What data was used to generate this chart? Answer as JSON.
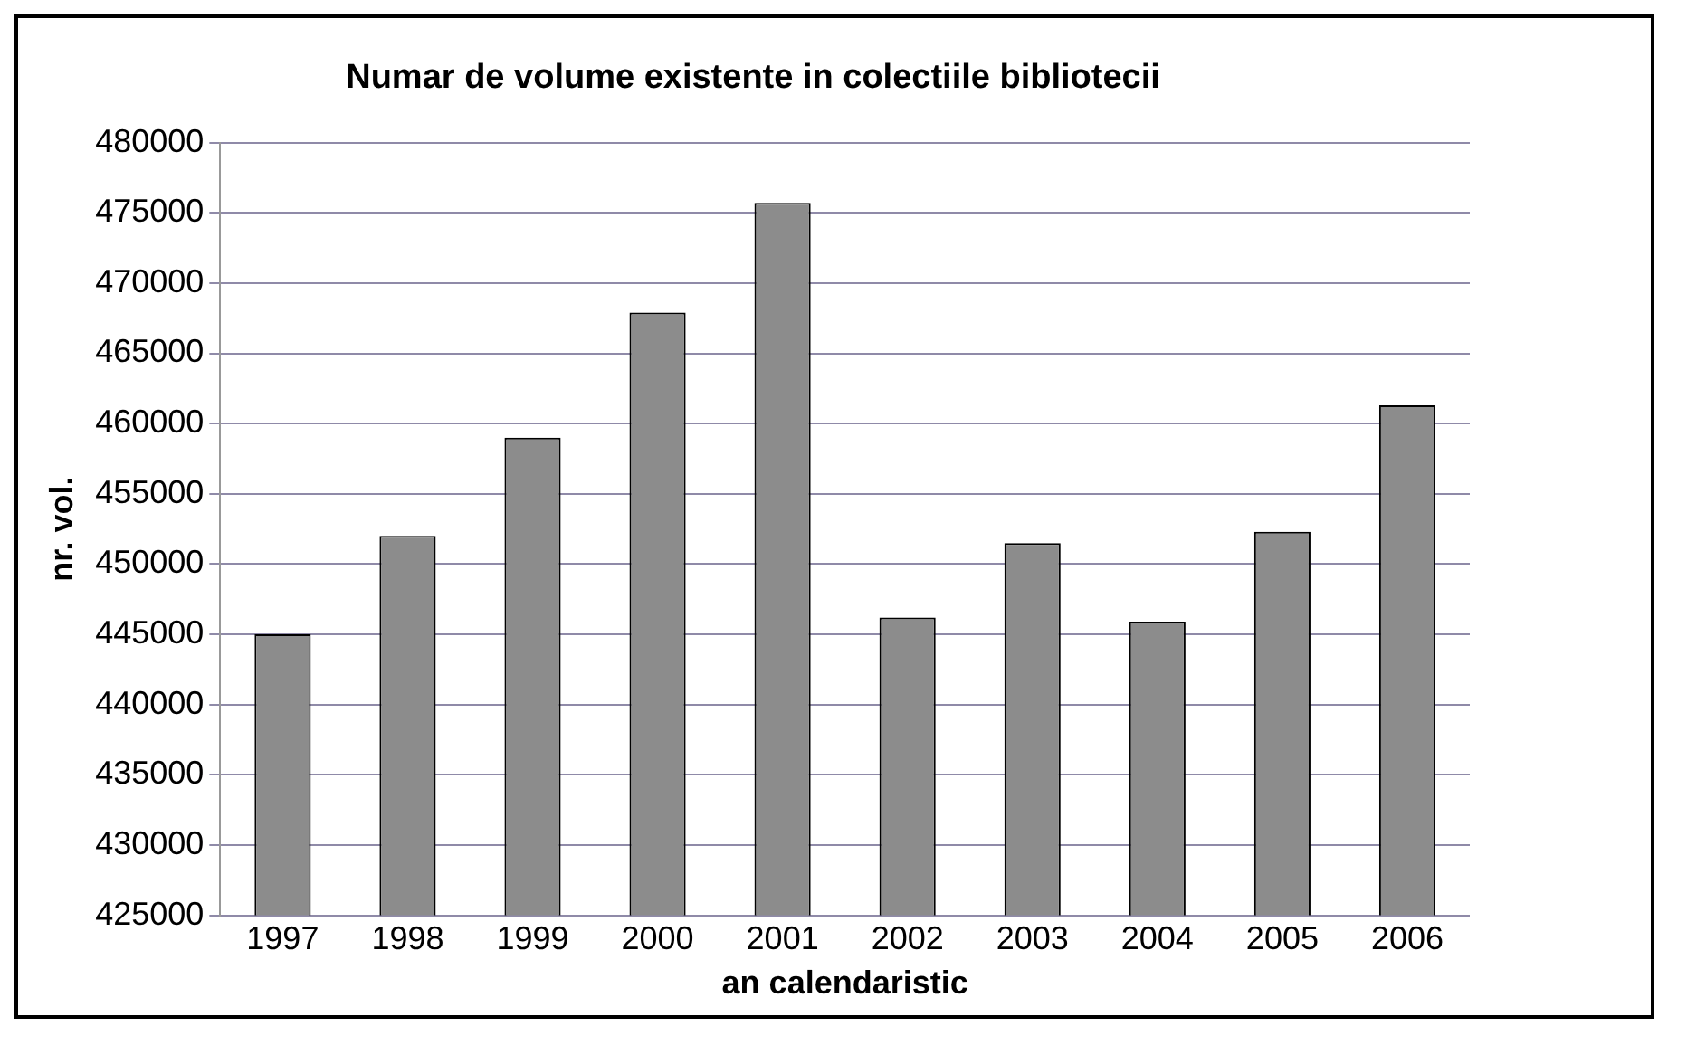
{
  "chart_data": {
    "type": "bar",
    "title": "Numar de volume existente in colectiile bibliotecii",
    "xlabel": "an calendaristic",
    "ylabel": "nr. vol.",
    "categories": [
      "1997",
      "1998",
      "1999",
      "2000",
      "2001",
      "2002",
      "2003",
      "2004",
      "2005",
      "2006"
    ],
    "values": [
      445000,
      452000,
      459000,
      467900,
      475700,
      446200,
      451500,
      445900,
      452300,
      461300
    ],
    "color": "#8c8c8c",
    "ylim": [
      425000,
      480000
    ],
    "yticks": [
      425000,
      430000,
      435000,
      440000,
      445000,
      450000,
      455000,
      460000,
      465000,
      470000,
      475000,
      480000
    ],
    "grid": "y",
    "legend": false
  }
}
